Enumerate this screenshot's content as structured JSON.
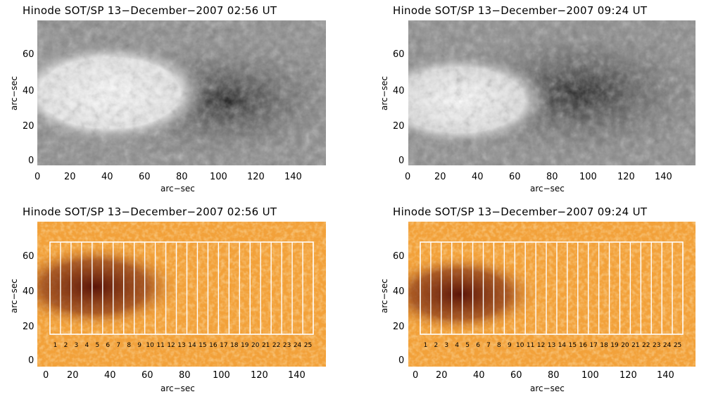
{
  "panels": [
    {
      "title": "Hinode SOT/SP 13−December−2007 02:56 UT",
      "kind": "magnetogram",
      "xlabel": "arc−sec",
      "ylabel": "arc−sec"
    },
    {
      "title": "Hinode SOT/SP 13−December−2007 09:24 UT",
      "kind": "magnetogram",
      "xlabel": "arc−sec",
      "ylabel": "arc−sec"
    },
    {
      "title": "Hinode SOT/SP 13−December−2007 02:56 UT",
      "kind": "continuum",
      "xlabel": "arc−sec",
      "ylabel": "arc−sec"
    },
    {
      "title": "Hinode SOT/SP 13−December−2007 09:24 UT",
      "kind": "continuum",
      "xlabel": "arc−sec",
      "ylabel": "arc−sec"
    }
  ],
  "axes": {
    "top_xticks": [
      "0",
      "20",
      "40",
      "60",
      "80",
      "100",
      "120",
      "140"
    ],
    "top_yticks": [
      "0",
      "20",
      "40",
      "60"
    ],
    "bottom_xticks": [
      "0",
      "20",
      "40",
      "60",
      "80",
      "100",
      "120",
      "140"
    ],
    "bottom_yticks": [
      "0",
      "20",
      "40",
      "60"
    ]
  },
  "strip_labels": [
    "1",
    "2",
    "3",
    "4",
    "5",
    "6",
    "7",
    "8",
    "9",
    "10",
    "11",
    "12",
    "13",
    "14",
    "15",
    "16",
    "17",
    "18",
    "19",
    "20",
    "21",
    "22",
    "23",
    "24",
    "25"
  ],
  "colors": {
    "grid_box": "#ffffff",
    "continuum_bg": "#f2a13a",
    "umbra": "#5a1408",
    "magneto_gray": "#8a8a8a"
  }
}
